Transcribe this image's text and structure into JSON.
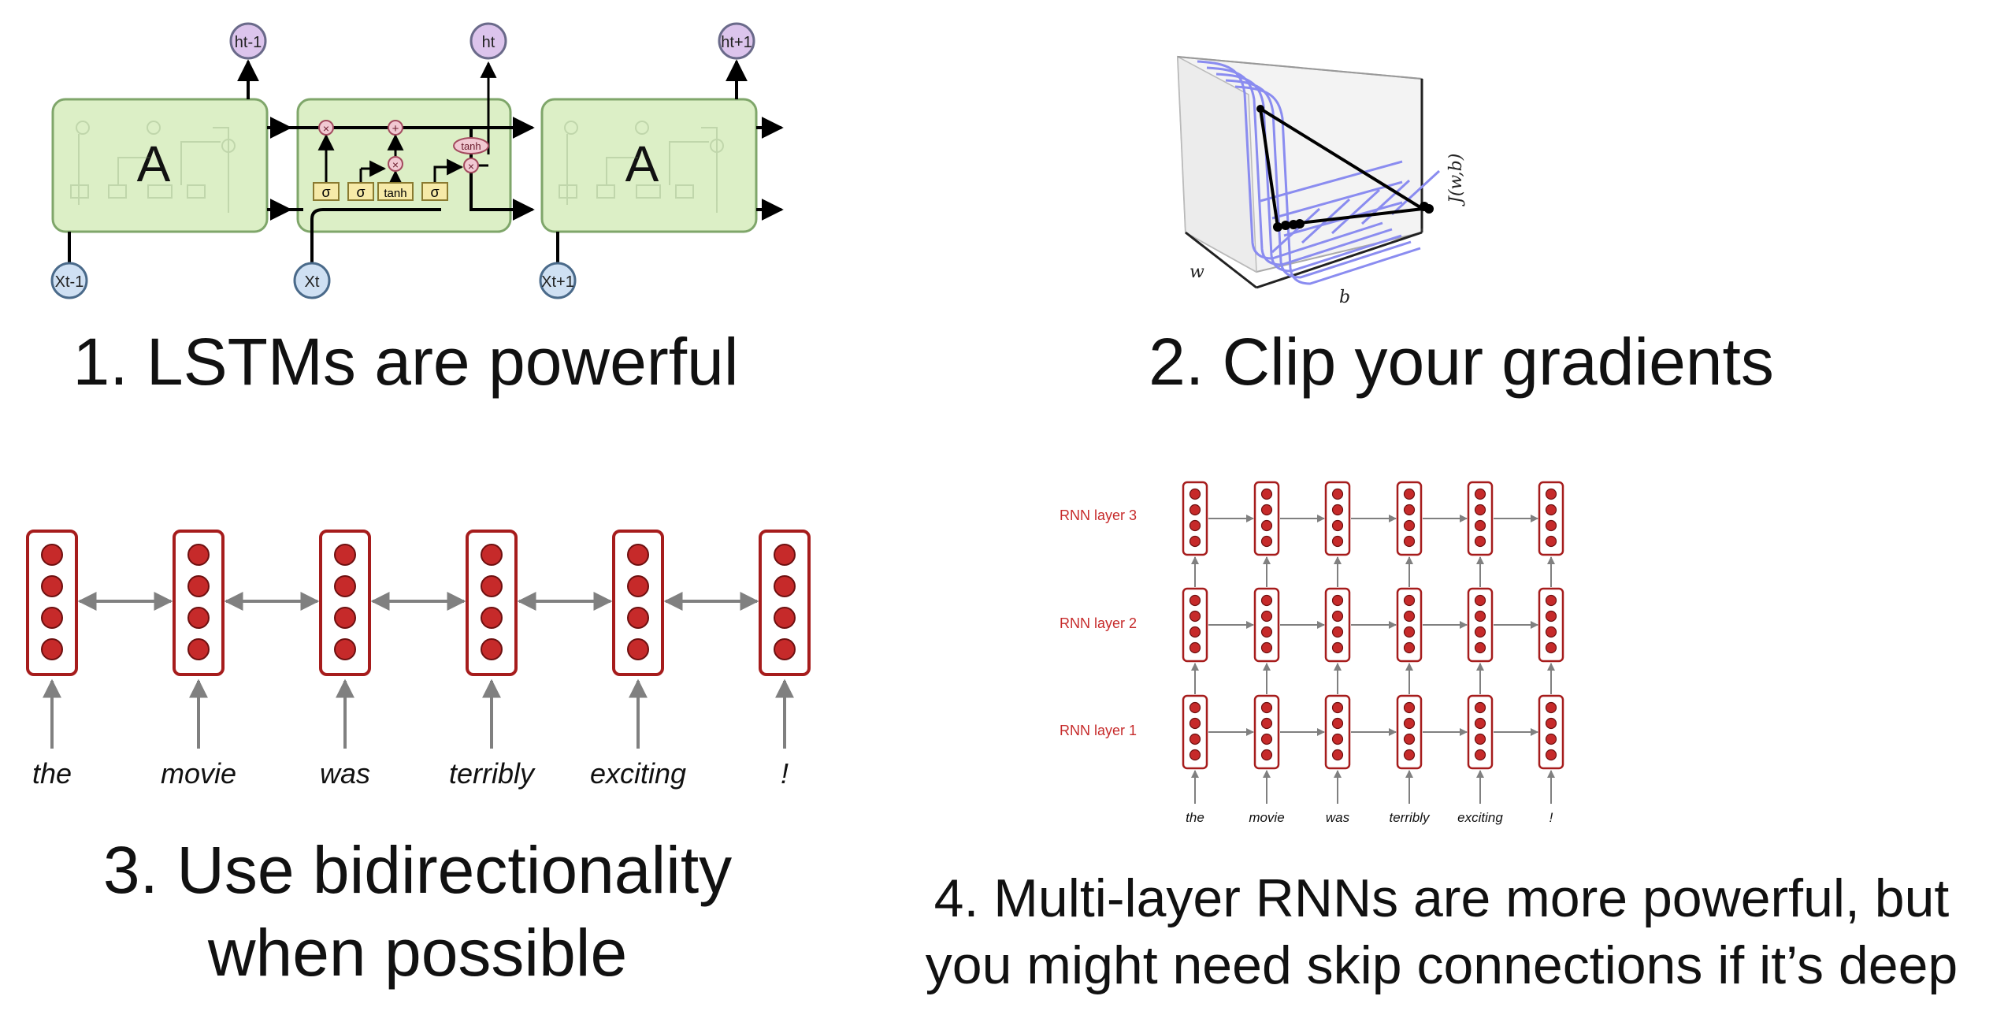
{
  "panels": {
    "lstm": {
      "caption": "1. LSTMs are powerful",
      "cell_label": "A",
      "outputs": [
        "ht-1",
        "ht",
        "ht+1"
      ],
      "inputs": [
        "Xt-1",
        "Xt",
        "Xt+1"
      ],
      "gates": [
        "σ",
        "σ",
        "tanh",
        "σ"
      ],
      "ops": [
        "×",
        "+",
        "×",
        "×"
      ],
      "tanh_label": "tanh",
      "colors": {
        "cell": "#dcefc6",
        "cell_border": "#7fa66a",
        "gate": "#f6eaa8",
        "op": "#f1c9d2",
        "node": "#cfe0f3",
        "out_node": "#dcc4ec"
      }
    },
    "clip": {
      "caption": "2. Clip your gradients",
      "axis_w": "w",
      "axis_b": "b",
      "axis_j": "J(w,b)",
      "colors": {
        "surface": "#8a8cf0",
        "path": "#000000"
      }
    },
    "bidir": {
      "caption_line1": "3. Use bidirectionality",
      "caption_line2": "when possible",
      "words": [
        "the",
        "movie",
        "was",
        "terribly",
        "exciting",
        "!"
      ],
      "colors": {
        "border": "#a61c1c",
        "dot": "#c62a2a",
        "arrow": "#808080"
      }
    },
    "multilayer": {
      "caption_line1": "4. Multi-layer RNNs are more powerful, but",
      "caption_line2": "you might need skip connections if it’s deep",
      "layer_labels": [
        "RNN layer 3",
        "RNN layer 2",
        "RNN layer 1"
      ],
      "words": [
        "the",
        "movie",
        "was",
        "terribly",
        "exciting",
        "!"
      ],
      "colors": {
        "label": "#c62a2a",
        "border": "#a61c1c",
        "dot": "#c62a2a",
        "arrow": "#808080"
      }
    }
  }
}
